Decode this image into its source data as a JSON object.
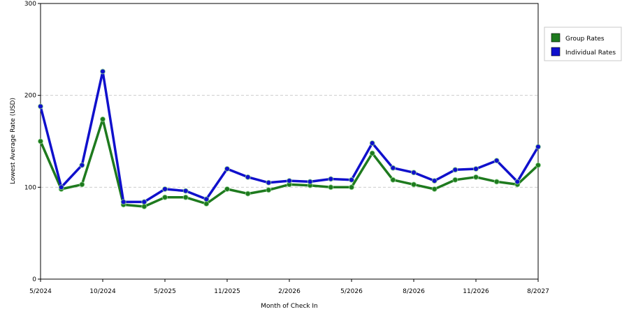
{
  "chart_data": {
    "type": "line",
    "title": "",
    "xlabel": "Month of Check In",
    "ylabel": "Lowest Average Rate (USD)",
    "ylim": [
      0,
      300
    ],
    "yticks": [
      0,
      100,
      200,
      300
    ],
    "grid": "horizontal dashed",
    "legend_position": "right",
    "x_tick_labels": [
      "5/2024",
      "10/2024",
      "5/2025",
      "11/2025",
      "2/2026",
      "5/2026",
      "8/2026",
      "11/2026",
      "8/2027"
    ],
    "x_tick_positions": [
      0,
      3,
      6,
      9,
      12,
      15,
      18,
      21,
      24
    ],
    "x_count": 25,
    "series": [
      {
        "name": "Group Rates",
        "color": "#1e7a1e",
        "values": [
          150,
          98,
          103,
          174,
          81,
          79,
          89,
          89,
          82,
          98,
          93,
          97,
          103,
          102,
          100,
          100,
          137,
          108,
          103,
          98,
          108,
          111,
          106,
          103,
          124
        ]
      },
      {
        "name": "Individual Rates",
        "color": "#1010cc",
        "values": [
          188,
          100,
          124,
          226,
          84,
          84,
          98,
          96,
          87,
          120,
          111,
          105,
          107,
          106,
          109,
          108,
          148,
          121,
          116,
          107,
          119,
          120,
          129,
          106,
          144
        ]
      }
    ]
  }
}
